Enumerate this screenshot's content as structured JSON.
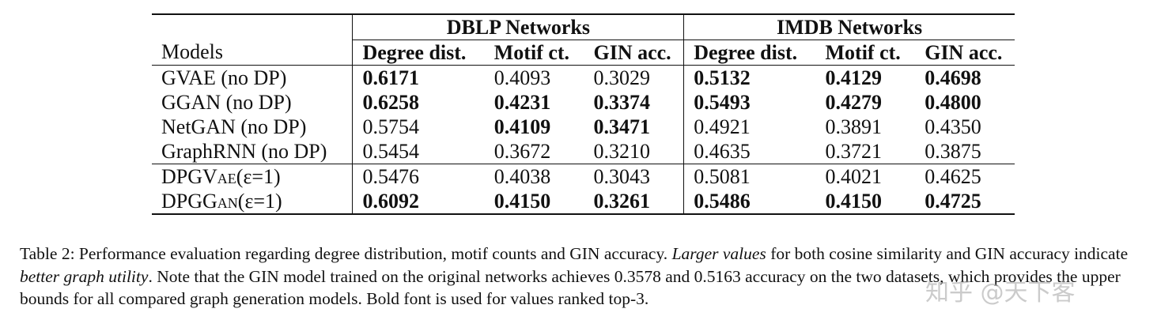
{
  "table": {
    "groups": [
      "DBLP Networks",
      "IMDB Networks"
    ],
    "columns": [
      "Models",
      "Degree dist.",
      "Motif ct.",
      "GIN acc.",
      "Degree dist.",
      "Motif ct.",
      "GIN acc."
    ],
    "rows": [
      {
        "model": "GVAE (no DP)",
        "values": [
          "0.6171",
          "0.4093",
          "0.3029",
          "0.5132",
          "0.4129",
          "0.4698"
        ],
        "bold": [
          true,
          false,
          false,
          true,
          true,
          true
        ]
      },
      {
        "model": "GGAN (no DP)",
        "values": [
          "0.6258",
          "0.4231",
          "0.3374",
          "0.5493",
          "0.4279",
          "0.4800"
        ],
        "bold": [
          true,
          true,
          true,
          true,
          true,
          true
        ]
      },
      {
        "model": "NetGAN (no DP)",
        "values": [
          "0.5754",
          "0.4109",
          "0.3471",
          "0.4921",
          "0.3891",
          "0.4350"
        ],
        "bold": [
          false,
          true,
          true,
          false,
          false,
          false
        ]
      },
      {
        "model": "GraphRNN (no DP)",
        "values": [
          "0.5454",
          "0.3672",
          "0.3210",
          "0.4635",
          "0.3721",
          "0.3875"
        ],
        "bold": [
          false,
          false,
          false,
          false,
          false,
          false
        ]
      },
      {
        "model_prefix": "DPGV",
        "model_sc": "ae",
        "model_suffix": "(ε=1)",
        "values": [
          "0.5476",
          "0.4038",
          "0.3043",
          "0.5081",
          "0.4021",
          "0.4625"
        ],
        "bold": [
          false,
          false,
          false,
          false,
          false,
          false
        ]
      },
      {
        "model_prefix": "DPGG",
        "model_sc": "an",
        "model_suffix": "(ε=1)",
        "values": [
          "0.6092",
          "0.4150",
          "0.3261",
          "0.5486",
          "0.4150",
          "0.4725"
        ],
        "bold": [
          true,
          true,
          true,
          true,
          true,
          true
        ]
      }
    ]
  },
  "caption": {
    "p1": "Table 2: Performance evaluation regarding degree distribution, motif counts and GIN accuracy. ",
    "i1": "Larger values",
    "p2": " for both cosine similarity and GIN accuracy indicate ",
    "i2": "better graph utility",
    "p3": ". Note that the GIN model trained on the original networks achieves 0.3578 and 0.5163 accuracy on the two datasets, which provides the upper bounds for all compared graph generation models. Bold font is used for values ranked top-3."
  },
  "watermark": "知乎 @天下客"
}
